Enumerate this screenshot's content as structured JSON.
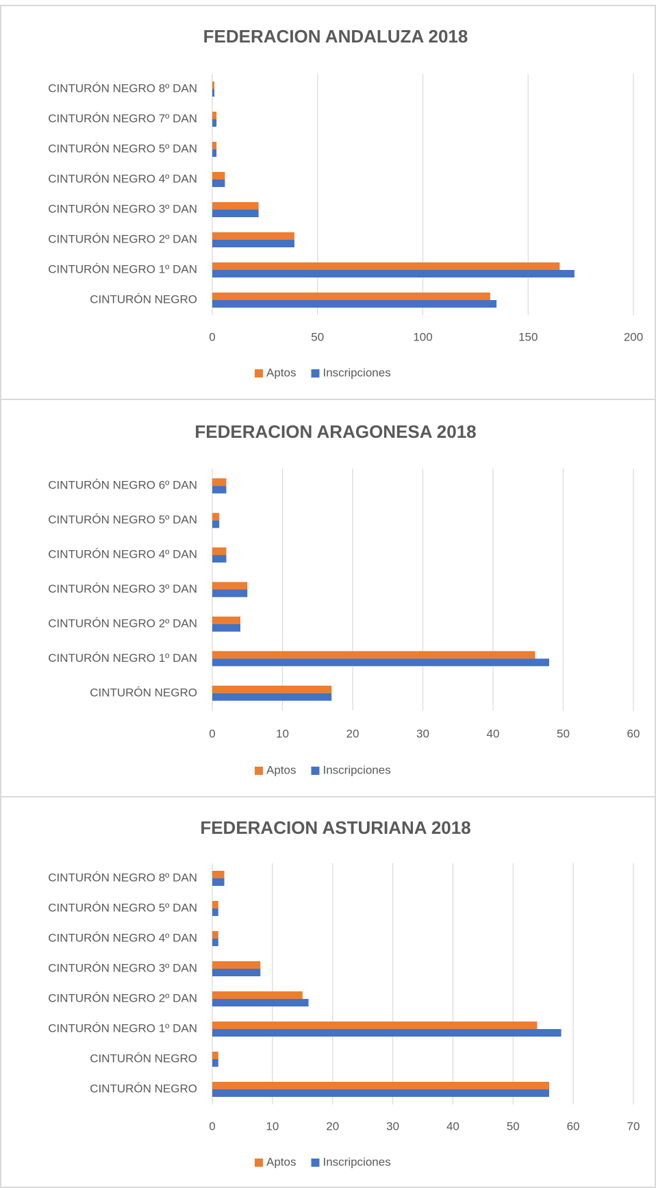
{
  "chart_data": [
    {
      "type": "barh",
      "title": "FEDERACION ANDALUZA 2018",
      "categories": [
        "CINTURÓN NEGRO",
        "CINTURÓN NEGRO 1º DAN",
        "CINTURÓN NEGRO 2º DAN",
        "CINTURÓN NEGRO 3º DAN",
        "CINTURÓN NEGRO 4º DAN",
        "CINTURÓN NEGRO 5º DAN",
        "CINTURÓN NEGRO 7º DAN",
        "CINTURÓN NEGRO 8º DAN"
      ],
      "series": [
        {
          "name": "Aptos",
          "color": "#ed7d31",
          "values": [
            132,
            165,
            39,
            22,
            6,
            2,
            2,
            1
          ]
        },
        {
          "name": "Inscripciones",
          "color": "#4472c4",
          "values": [
            135,
            172,
            39,
            22,
            6,
            2,
            2,
            1
          ]
        }
      ],
      "xlim": [
        0,
        200
      ],
      "xticks": [
        0,
        50,
        100,
        150,
        200
      ],
      "grid": true,
      "legend": "bottom"
    },
    {
      "type": "barh",
      "title": "FEDERACION ARAGONESA 2018",
      "categories": [
        "CINTURÓN NEGRO",
        "CINTURÓN NEGRO 1º DAN",
        "CINTURÓN NEGRO 2º DAN",
        "CINTURÓN NEGRO 3º DAN",
        "CINTURÓN NEGRO 4º DAN",
        "CINTURÓN NEGRO 5º DAN",
        "CINTURÓN NEGRO 6º DAN"
      ],
      "series": [
        {
          "name": "Aptos",
          "color": "#ed7d31",
          "values": [
            17,
            46,
            4,
            5,
            2,
            1,
            2
          ]
        },
        {
          "name": "Inscripciones",
          "color": "#4472c4",
          "values": [
            17,
            48,
            4,
            5,
            2,
            1,
            2
          ]
        }
      ],
      "xlim": [
        0,
        60
      ],
      "xticks": [
        0,
        10,
        20,
        30,
        40,
        50,
        60
      ],
      "grid": true,
      "legend": "bottom"
    },
    {
      "type": "barh",
      "title": "FEDERACION ASTURIANA 2018",
      "categories": [
        "CINTURÓN NEGRO",
        "CINTURÓN NEGRO",
        "CINTURÓN NEGRO 1º DAN",
        "CINTURÓN NEGRO 2º DAN",
        "CINTURÓN NEGRO 3º DAN",
        "CINTURÓN NEGRO 4º DAN",
        "CINTURÓN NEGRO 5º DAN",
        "CINTURÓN NEGRO 8º DAN"
      ],
      "series": [
        {
          "name": "Aptos",
          "color": "#ed7d31",
          "values": [
            56,
            1,
            54,
            15,
            8,
            1,
            1,
            2
          ]
        },
        {
          "name": "Inscripciones",
          "color": "#4472c4",
          "values": [
            56,
            1,
            58,
            16,
            8,
            1,
            1,
            2
          ]
        }
      ],
      "xlim": [
        0,
        70
      ],
      "xticks": [
        0,
        10,
        20,
        30,
        40,
        50,
        60,
        70
      ],
      "grid": true,
      "legend": "bottom"
    }
  ]
}
